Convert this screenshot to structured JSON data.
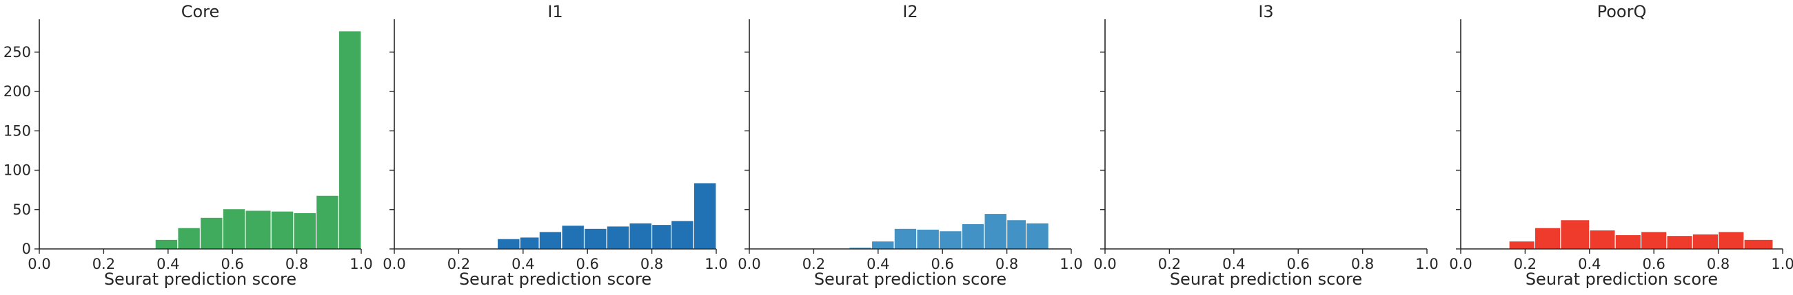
{
  "chart_data": [
    {
      "type": "bar",
      "title": "Core",
      "xlabel": "Seurat prediction score",
      "ylabel": "",
      "xlim": [
        0,
        1
      ],
      "ylim": [
        0,
        290
      ],
      "xticks": [
        "0.0",
        "0.2",
        "0.4",
        "0.6",
        "0.8",
        "1.0"
      ],
      "yticks": [
        "0",
        "50",
        "100",
        "150",
        "200",
        "250"
      ],
      "color": "#41ab5d",
      "bins": [
        {
          "x0": 0.29,
          "x1": 0.36,
          "count": 1
        },
        {
          "x0": 0.36,
          "x1": 0.43,
          "count": 12
        },
        {
          "x0": 0.43,
          "x1": 0.5,
          "count": 27
        },
        {
          "x0": 0.5,
          "x1": 0.57,
          "count": 40
        },
        {
          "x0": 0.57,
          "x1": 0.64,
          "count": 51
        },
        {
          "x0": 0.64,
          "x1": 0.72,
          "count": 49
        },
        {
          "x0": 0.72,
          "x1": 0.79,
          "count": 48
        },
        {
          "x0": 0.79,
          "x1": 0.86,
          "count": 46
        },
        {
          "x0": 0.86,
          "x1": 0.93,
          "count": 68
        },
        {
          "x0": 0.93,
          "x1": 1.0,
          "count": 277
        }
      ]
    },
    {
      "type": "bar",
      "title": "I1",
      "xlabel": "Seurat prediction score",
      "ylabel": "",
      "xlim": [
        0,
        1
      ],
      "xticks": [
        "0.0",
        "0.2",
        "0.4",
        "0.6",
        "0.8",
        "1.0"
      ],
      "color": "#2171b5",
      "bins": [
        {
          "x0": 0.32,
          "x1": 0.39,
          "count": 13
        },
        {
          "x0": 0.39,
          "x1": 0.45,
          "count": 15
        },
        {
          "x0": 0.45,
          "x1": 0.52,
          "count": 22
        },
        {
          "x0": 0.52,
          "x1": 0.59,
          "count": 30
        },
        {
          "x0": 0.59,
          "x1": 0.66,
          "count": 26
        },
        {
          "x0": 0.66,
          "x1": 0.73,
          "count": 29
        },
        {
          "x0": 0.73,
          "x1": 0.8,
          "count": 33
        },
        {
          "x0": 0.8,
          "x1": 0.86,
          "count": 31
        },
        {
          "x0": 0.86,
          "x1": 0.93,
          "count": 36
        },
        {
          "x0": 0.93,
          "x1": 1.0,
          "count": 84
        }
      ]
    },
    {
      "type": "bar",
      "title": "I2",
      "xlabel": "Seurat prediction score",
      "ylabel": "",
      "xlim": [
        0,
        1
      ],
      "xticks": [
        "0.0",
        "0.2",
        "0.4",
        "0.6",
        "0.8",
        "1.0"
      ],
      "color": "#4292c6",
      "bins": [
        {
          "x0": 0.31,
          "x1": 0.38,
          "count": 2
        },
        {
          "x0": 0.38,
          "x1": 0.45,
          "count": 10
        },
        {
          "x0": 0.45,
          "x1": 0.52,
          "count": 26
        },
        {
          "x0": 0.52,
          "x1": 0.59,
          "count": 25
        },
        {
          "x0": 0.59,
          "x1": 0.66,
          "count": 23
        },
        {
          "x0": 0.66,
          "x1": 0.73,
          "count": 32
        },
        {
          "x0": 0.73,
          "x1": 0.8,
          "count": 45
        },
        {
          "x0": 0.8,
          "x1": 0.86,
          "count": 37
        },
        {
          "x0": 0.86,
          "x1": 0.93,
          "count": 33
        }
      ]
    },
    {
      "type": "bar",
      "title": "I3",
      "xlabel": "Seurat prediction score",
      "ylabel": "",
      "xlim": [
        0,
        1
      ],
      "xticks": [
        "0.0",
        "0.2",
        "0.4",
        "0.6",
        "0.8",
        "1.0"
      ],
      "color": "#6baed6",
      "bins": [
        {
          "x0": 0.32,
          "x1": 0.4,
          "count": 1
        },
        {
          "x0": 0.8,
          "x1": 0.86,
          "count": 1
        },
        {
          "x0": 0.92,
          "x1": 0.99,
          "count": 1
        }
      ]
    },
    {
      "type": "bar",
      "title": "PoorQ",
      "xlabel": "Seurat prediction score",
      "ylabel": "",
      "xlim": [
        0,
        1
      ],
      "xticks": [
        "0.0",
        "0.2",
        "0.4",
        "0.6",
        "0.8",
        "1.0"
      ],
      "color": "#ef3b2c",
      "bins": [
        {
          "x0": 0.15,
          "x1": 0.23,
          "count": 10
        },
        {
          "x0": 0.23,
          "x1": 0.31,
          "count": 27
        },
        {
          "x0": 0.31,
          "x1": 0.4,
          "count": 37
        },
        {
          "x0": 0.4,
          "x1": 0.48,
          "count": 24
        },
        {
          "x0": 0.48,
          "x1": 0.56,
          "count": 18
        },
        {
          "x0": 0.56,
          "x1": 0.64,
          "count": 22
        },
        {
          "x0": 0.64,
          "x1": 0.72,
          "count": 17
        },
        {
          "x0": 0.72,
          "x1": 0.8,
          "count": 19
        },
        {
          "x0": 0.8,
          "x1": 0.88,
          "count": 22
        },
        {
          "x0": 0.88,
          "x1": 0.97,
          "count": 12
        }
      ]
    }
  ]
}
